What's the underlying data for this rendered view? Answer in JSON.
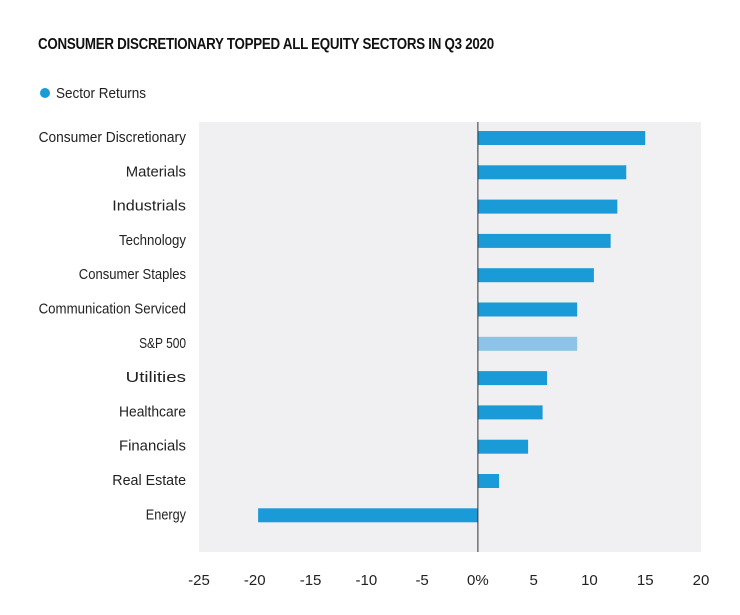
{
  "chart_data": {
    "type": "bar",
    "orientation": "horizontal",
    "title": "CONSUMER DISCRETIONARY TOPPED ALL EQUITY SECTORS IN Q3 2020",
    "legend": {
      "placement": "top-left",
      "entries": [
        "Sector Returns"
      ]
    },
    "categories": [
      "Consumer Discretionary",
      "Materials",
      "Industrials",
      "Technology",
      "Consumer Staples",
      "Communication Serviced",
      "S&P 500",
      "Utilities",
      "Healthcare",
      "Financials",
      "Real Estate",
      "Energy"
    ],
    "series": [
      {
        "name": "Sector Returns",
        "values": [
          15.0,
          13.3,
          12.5,
          11.9,
          10.4,
          8.9,
          8.9,
          6.2,
          5.8,
          4.5,
          1.9,
          -19.7
        ]
      }
    ],
    "highlight_category": "S&P 500",
    "xlim": [
      -25,
      20
    ],
    "xticks": [
      -25,
      -20,
      -15,
      -10,
      -5,
      0,
      5,
      10,
      15,
      20
    ],
    "xtick_labels": [
      "-25",
      "-20",
      "-15",
      "-10",
      "-5",
      "0%",
      "5",
      "10",
      "15",
      "20"
    ],
    "xlabel": "",
    "ylabel": "",
    "grid": false,
    "colors": {
      "bar": "#1a9ad6",
      "highlight_bar": "#8cc3e6",
      "plot_background": "#f0f0f2",
      "zero_line": "#333333"
    }
  }
}
